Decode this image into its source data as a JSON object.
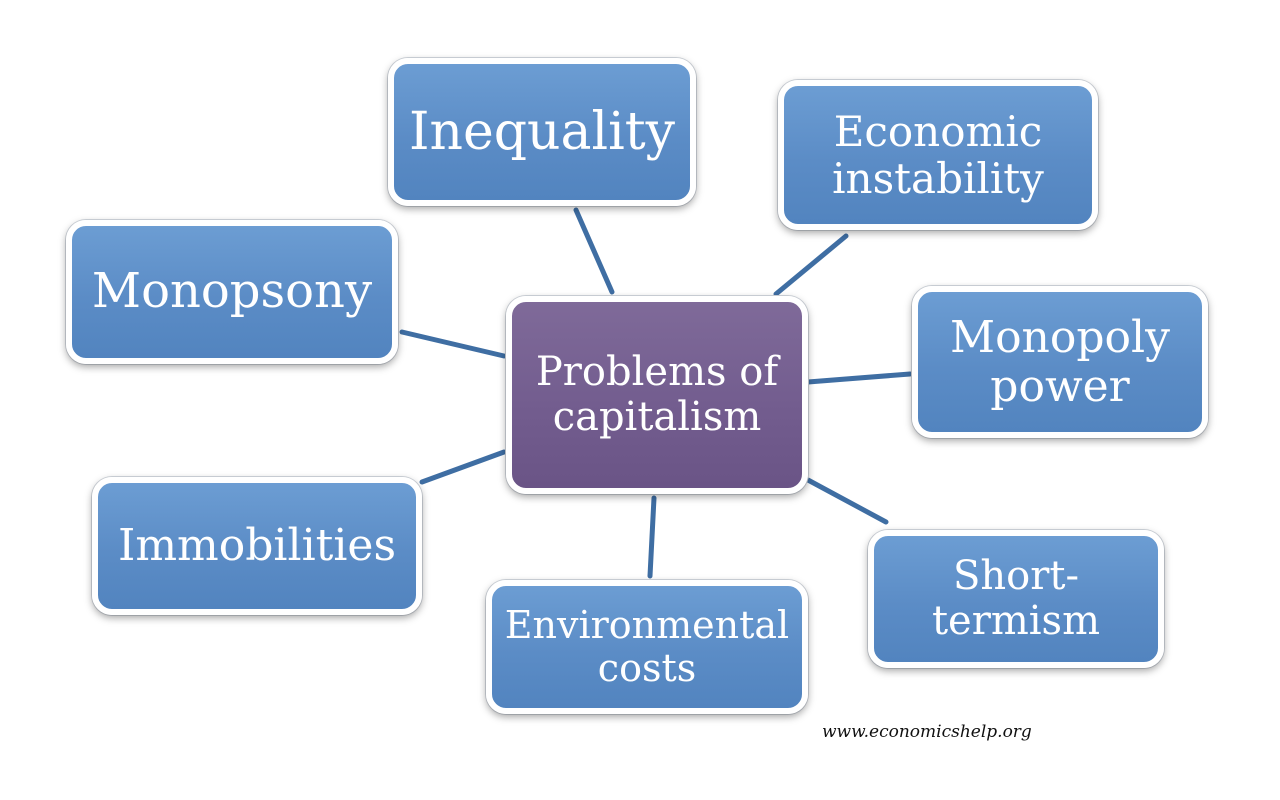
{
  "diagram": {
    "center": "Problems of\ncapitalism",
    "nodes": {
      "inequality": "Inequality",
      "economic_instability": "Economic\ninstability",
      "monopsony": "Monopsony",
      "monopoly_power": "Monopoly\npower",
      "immobilities": "Immobilities",
      "environmental_costs": "Environmental\ncosts",
      "short_termism": "Short-\ntermism"
    },
    "colors": {
      "node_fill": "#5b8cc6",
      "center_fill": "#735d8f",
      "connector": "#3f6ea3",
      "node_border": "#ffffff"
    }
  },
  "source": "www.economicshelp.org"
}
